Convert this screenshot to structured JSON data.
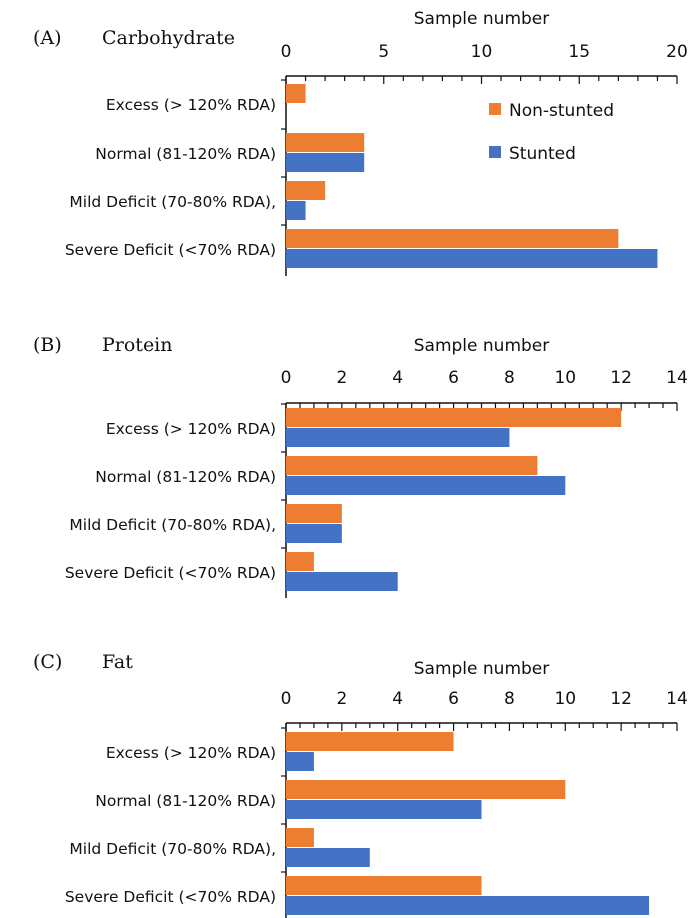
{
  "colors": {
    "non_stunted": "#ED7D31",
    "stunted": "#4472C4"
  },
  "legend": {
    "non_stunted_label": "Non-stunted",
    "stunted_label": "Stunted",
    "placement": "top-right of panel A"
  },
  "chart_data": [
    {
      "type": "bar",
      "orientation": "horizontal",
      "panel_tag": "(A)",
      "title": "Carbohydrate",
      "xlabel": "Sample number",
      "xlim": [
        0,
        20
      ],
      "x_ticks": [
        0,
        5,
        10,
        15,
        20
      ],
      "categories": [
        "Excess (> 120% RDA)",
        "Normal (81-120% RDA)",
        "Mild Deficit (70-80% RDA),",
        "Severe Deficit (<70% RDA)"
      ],
      "series": [
        {
          "name": "Non-stunted",
          "values": [
            1,
            4,
            2,
            17
          ]
        },
        {
          "name": "Stunted",
          "values": [
            0,
            4,
            1,
            19
          ]
        }
      ]
    },
    {
      "type": "bar",
      "orientation": "horizontal",
      "panel_tag": "(B)",
      "title": "Protein",
      "xlabel": "Sample number",
      "xlim": [
        0,
        14
      ],
      "x_ticks": [
        0,
        2,
        4,
        6,
        8,
        10,
        12,
        14
      ],
      "categories": [
        "Excess (> 120% RDA)",
        "Normal (81-120% RDA)",
        "Mild Deficit (70-80% RDA),",
        "Severe Deficit (<70% RDA)"
      ],
      "series": [
        {
          "name": "Non-stunted",
          "values": [
            12,
            9,
            2,
            1
          ]
        },
        {
          "name": "Stunted",
          "values": [
            8,
            10,
            2,
            4
          ]
        }
      ]
    },
    {
      "type": "bar",
      "orientation": "horizontal",
      "panel_tag": "(C)",
      "title": "Fat",
      "xlabel": "Sample number",
      "xlim": [
        0,
        14
      ],
      "x_ticks": [
        0,
        2,
        4,
        6,
        8,
        10,
        12,
        14
      ],
      "categories": [
        "Excess (> 120% RDA)",
        "Normal (81-120% RDA)",
        "Mild Deficit (70-80% RDA),",
        "Severe Deficit (<70% RDA)"
      ],
      "series": [
        {
          "name": "Non-stunted",
          "values": [
            6,
            10,
            1,
            7
          ]
        },
        {
          "name": "Stunted",
          "values": [
            1,
            7,
            3,
            13
          ]
        }
      ]
    }
  ]
}
